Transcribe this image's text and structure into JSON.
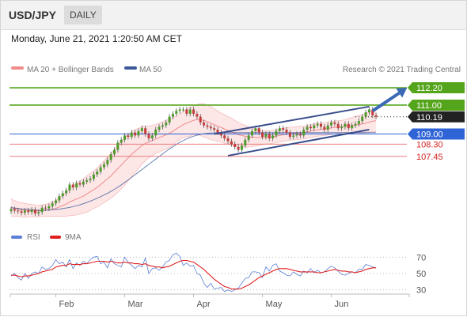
{
  "header": {
    "pair": "USD/JPY",
    "period": "DAILY"
  },
  "timestamp": "Monday, June 21, 2021 1:20:50 AM CET",
  "legend": {
    "bb_label": "MA 20 + Bollinger Bands",
    "bb_color": "#f08c8c",
    "ma50_label": "MA 50",
    "ma50_color": "#3c5a9a",
    "source": "Research © 2021 Trading Central",
    "rsi_label": "RSI",
    "rsi_color": "#5b7fd6",
    "rsi_ma_label": "9MA",
    "rsi_ma_color": "#e02020"
  },
  "chart_data": [
    {
      "type": "candlestick",
      "title": "USD/JPY DAILY",
      "months": [
        "Feb",
        "Mar",
        "Apr",
        "May",
        "Jun"
      ],
      "month_start_index": [
        13,
        33,
        53,
        73,
        93
      ],
      "ylim": [
        102.9,
        112.75
      ],
      "closes": [
        103.8,
        103.7,
        103.65,
        103.55,
        103.7,
        103.6,
        103.75,
        103.5,
        103.6,
        103.9,
        103.85,
        104.0,
        104.2,
        104.4,
        104.7,
        104.9,
        105.1,
        105.5,
        105.3,
        105.6,
        105.5,
        105.7,
        105.8,
        105.9,
        106.2,
        106.4,
        106.7,
        106.9,
        107.2,
        107.6,
        107.9,
        108.4,
        108.6,
        108.9,
        108.8,
        109.1,
        108.9,
        109.2,
        109.4,
        109.0,
        108.7,
        108.9,
        109.3,
        109.5,
        109.6,
        109.8,
        110.2,
        110.4,
        110.6,
        110.7,
        110.7,
        110.4,
        110.7,
        110.4,
        110.2,
        109.8,
        109.6,
        109.5,
        109.4,
        109.3,
        109.1,
        108.9,
        108.7,
        108.5,
        108.3,
        108.1,
        107.9,
        108.2,
        108.6,
        108.9,
        109.2,
        109.4,
        109.1,
        108.8,
        109.0,
        108.7,
        108.9,
        109.2,
        109.4,
        109.3,
        109.1,
        108.8,
        108.9,
        109.0,
        108.9,
        109.3,
        109.5,
        109.4,
        109.6,
        109.7,
        109.5,
        109.3,
        109.6,
        109.8,
        109.7,
        109.4,
        109.5,
        109.7,
        109.4,
        109.6,
        109.7,
        109.9,
        110.2,
        110.5,
        110.7,
        110.3,
        110.19
      ],
      "ma20": [
        103.9,
        103.85,
        103.8,
        103.75,
        103.72,
        103.7,
        103.7,
        103.68,
        103.67,
        103.7,
        103.72,
        103.75,
        103.8,
        103.85,
        103.95,
        104.05,
        104.15,
        104.3,
        104.4,
        104.5,
        104.6,
        104.7,
        104.85,
        105.0,
        105.15,
        105.3,
        105.5,
        105.7,
        105.9,
        106.1,
        106.35,
        106.6,
        106.85,
        107.1,
        107.35,
        107.6,
        107.8,
        108.0,
        108.2,
        108.35,
        108.45,
        108.55,
        108.65,
        108.75,
        108.85,
        108.95,
        109.05,
        109.2,
        109.35,
        109.5,
        109.65,
        109.75,
        109.85,
        109.95,
        110.0,
        110.0,
        109.95,
        109.85,
        109.75,
        109.65,
        109.55,
        109.45,
        109.35,
        109.25,
        109.15,
        109.05,
        108.95,
        108.9,
        108.85,
        108.8,
        108.78,
        108.77,
        108.76,
        108.76,
        108.77,
        108.78,
        108.8,
        108.85,
        108.9,
        108.95,
        109.0,
        109.02,
        109.04,
        109.06,
        109.08,
        109.1,
        109.15,
        109.2,
        109.25,
        109.3,
        109.32,
        109.34,
        109.38,
        109.42,
        109.45,
        109.48,
        109.5,
        109.55,
        109.58,
        109.6,
        109.62,
        109.65,
        109.7,
        109.75,
        109.82,
        109.88,
        109.92
      ],
      "bb_width": [
        0.6,
        0.55,
        0.5,
        0.5,
        0.48,
        0.45,
        0.42,
        0.42,
        0.4,
        0.4,
        0.42,
        0.45,
        0.5,
        0.55,
        0.65,
        0.75,
        0.85,
        0.95,
        1.05,
        1.1,
        1.15,
        1.2,
        1.25,
        1.3,
        1.3,
        1.35,
        1.4,
        1.45,
        1.5,
        1.55,
        1.6,
        1.65,
        1.65,
        1.65,
        1.6,
        1.55,
        1.5,
        1.4,
        1.3,
        1.2,
        1.1,
        1.05,
        1.0,
        1.0,
        1.0,
        1.0,
        1.0,
        0.95,
        0.9,
        0.9,
        0.9,
        0.95,
        1.0,
        1.0,
        1.05,
        1.1,
        1.15,
        1.15,
        1.15,
        1.1,
        1.05,
        1.0,
        1.0,
        0.95,
        0.95,
        0.9,
        0.85,
        0.8,
        0.75,
        0.7,
        0.65,
        0.6,
        0.55,
        0.5,
        0.45,
        0.45,
        0.45,
        0.45,
        0.45,
        0.45,
        0.45,
        0.45,
        0.45,
        0.45,
        0.45,
        0.45,
        0.45,
        0.45,
        0.45,
        0.45,
        0.45,
        0.45,
        0.45,
        0.45,
        0.45,
        0.45,
        0.45,
        0.45,
        0.5,
        0.55,
        0.6,
        0.62,
        0.65,
        0.68,
        0.7,
        0.72,
        0.75
      ],
      "ma50": [
        103.9,
        103.88,
        103.85,
        103.82,
        103.8,
        103.78,
        103.76,
        103.74,
        103.72,
        103.72,
        103.73,
        103.74,
        103.76,
        103.78,
        103.8,
        103.84,
        103.88,
        103.92,
        103.98,
        104.04,
        104.1,
        104.18,
        104.26,
        104.35,
        104.45,
        104.55,
        104.66,
        104.78,
        104.9,
        105.03,
        105.17,
        105.32,
        105.48,
        105.65,
        105.82,
        106.0,
        106.18,
        106.36,
        106.54,
        106.72,
        106.9,
        107.08,
        107.26,
        107.44,
        107.62,
        107.8,
        107.96,
        108.12,
        108.28,
        108.42,
        108.55,
        108.66,
        108.76,
        108.85,
        108.92,
        108.98,
        109.02,
        109.05,
        109.07,
        109.08,
        109.09,
        109.1,
        109.1,
        109.1,
        109.1,
        109.1,
        109.1,
        109.1,
        109.1,
        109.1,
        109.1,
        109.1,
        109.1,
        109.1,
        109.1,
        109.1,
        109.1,
        109.1,
        109.1,
        109.1,
        109.1,
        109.1,
        109.1,
        109.1,
        109.1,
        109.1,
        109.1,
        109.1,
        109.1,
        109.1,
        109.1,
        109.1,
        109.1,
        109.1,
        109.1,
        109.1,
        109.1,
        109.1,
        109.1,
        109.1,
        109.1,
        109.1,
        109.1,
        109.1,
        109.1,
        109.1,
        109.1
      ],
      "levels": [
        {
          "price": 112.2,
          "label": "112.20",
          "line_color": "#55a51c",
          "box_color": "#55a51c",
          "text_color": "#ffffff",
          "style": "solid"
        },
        {
          "price": 111.0,
          "label": "111.00",
          "line_color": "#55a51c",
          "box_color": "#55a51c",
          "text_color": "#ffffff",
          "style": "solid"
        },
        {
          "price": 110.19,
          "label": "110.19",
          "line_color": "#222222",
          "box_color": "#222222",
          "text_color": "#ffffff",
          "style": "dotted"
        },
        {
          "price": 109.0,
          "label": "109.00",
          "line_color": "#2f64d6",
          "box_color": "#2f64d6",
          "text_color": "#ffffff",
          "style": "solid"
        },
        {
          "price": 108.3,
          "label": "108.30",
          "line_color": "#e86a6a",
          "box_color": "",
          "text_color": "#d62020",
          "style": "solid"
        },
        {
          "price": 107.45,
          "label": "107.45",
          "line_color": "#e86a6a",
          "box_color": "",
          "text_color": "#d62020",
          "style": "solid"
        }
      ],
      "channel": [
        {
          "from": [
            59,
            109.0
          ],
          "to": [
            104,
            110.9
          ]
        },
        {
          "from": [
            63,
            107.5
          ],
          "to": [
            104,
            109.3
          ]
        }
      ],
      "forecast_arrow": {
        "from": [
          105,
          110.6
        ],
        "to": [
          115,
          112.2
        ],
        "color": "#3a69b5"
      }
    },
    {
      "type": "line",
      "title": "RSI",
      "ylim": [
        20,
        80
      ],
      "yticks": [
        70,
        50,
        30
      ],
      "guides": [
        70,
        50,
        30
      ],
      "series": [
        {
          "name": "RSI",
          "values": [
            47,
            50,
            45,
            42,
            50,
            44,
            50,
            52,
            50,
            58,
            55,
            56,
            60,
            67,
            62,
            64,
            58,
            67,
            56,
            63,
            60,
            65,
            62,
            67,
            70,
            71,
            62,
            64,
            57,
            68,
            62,
            60,
            58,
            70,
            64,
            60,
            56,
            60,
            58,
            69,
            50,
            56,
            57,
            54,
            58,
            64,
            66,
            73,
            75,
            71,
            60,
            63,
            59,
            60,
            50,
            48,
            38,
            33,
            38,
            31,
            32,
            33,
            28,
            30,
            28,
            30,
            32,
            38,
            44,
            45,
            52,
            52,
            51,
            45,
            58,
            53,
            60,
            62,
            53,
            51,
            48,
            47,
            52,
            49,
            47,
            53,
            51,
            56,
            51,
            54,
            51,
            52,
            56,
            59,
            57,
            53,
            49,
            48,
            50,
            52,
            51,
            55,
            55,
            61,
            60,
            58,
            57
          ]
        },
        {
          "name": "9MA",
          "values": [
            48,
            48,
            47,
            46,
            47,
            47,
            48,
            49,
            50,
            52,
            53,
            54,
            55,
            58,
            59,
            60,
            60,
            62,
            61,
            61,
            61,
            62,
            62,
            63,
            64,
            65,
            65,
            65,
            64,
            65,
            64,
            63,
            63,
            64,
            63,
            63,
            62,
            62,
            61,
            62,
            60,
            59,
            58,
            58,
            57,
            58,
            59,
            61,
            63,
            65,
            66,
            66,
            65,
            64,
            61,
            58,
            55,
            51,
            47,
            43,
            40,
            37,
            34,
            33,
            31,
            31,
            31,
            32,
            34,
            36,
            39,
            42,
            45,
            47,
            49,
            51,
            53,
            55,
            56,
            56,
            56,
            55,
            54,
            53,
            52,
            52,
            52,
            52,
            52,
            51,
            51,
            52,
            53,
            54,
            55,
            54,
            53,
            53,
            52,
            52,
            51,
            52,
            53,
            55,
            56,
            57,
            57
          ]
        }
      ]
    }
  ]
}
